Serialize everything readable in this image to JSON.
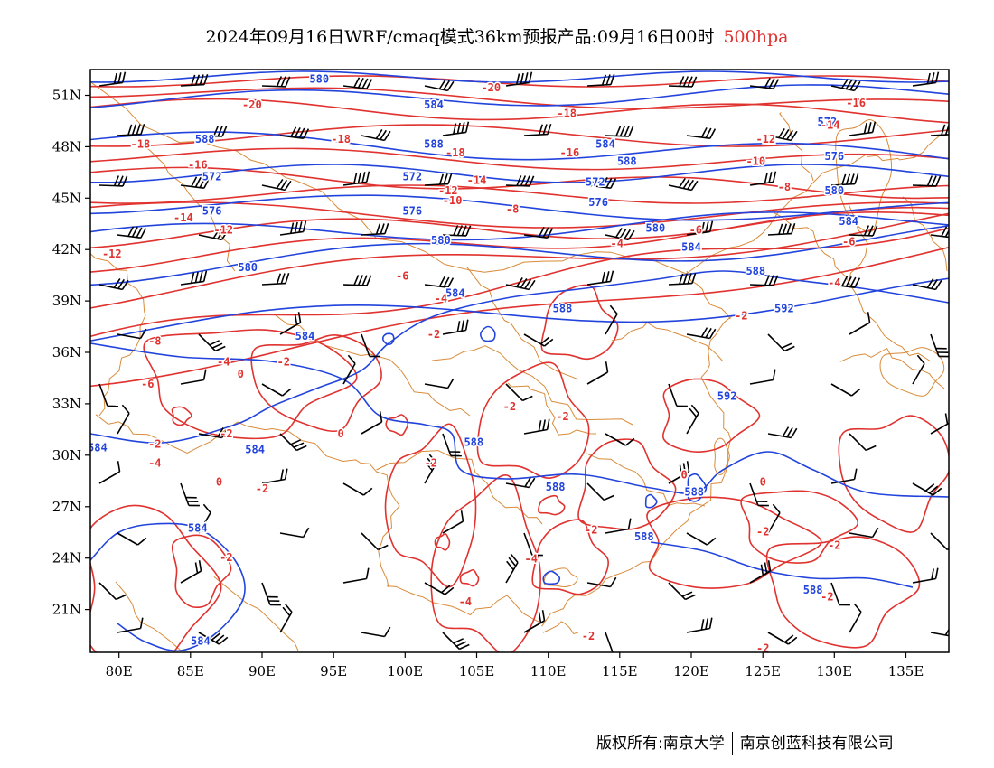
{
  "title": {
    "main": "2024年09月16日WRF/cmaq模式36km预报产品:09月16日00时",
    "level": "500hpa"
  },
  "axes": {
    "lon_labels": [
      "80E",
      "85E",
      "90E",
      "95E",
      "100E",
      "105E",
      "110E",
      "115E",
      "120E",
      "125E",
      "130E",
      "135E"
    ],
    "lat_labels": [
      "21N",
      "24N",
      "27N",
      "30N",
      "33N",
      "36N",
      "39N",
      "42N",
      "45N",
      "48N",
      "51N"
    ],
    "lon_range": [
      78,
      138
    ],
    "lat_range": [
      18.5,
      52.5
    ]
  },
  "colors": {
    "height_contour": "#2244dd",
    "temperature_contour": "#e0322f",
    "boundary": "#d98b3a",
    "wind_barb": "#000000"
  },
  "height_contours": [
    {
      "label": "580",
      "lon": 94,
      "lat": 52
    },
    {
      "label": "584",
      "lon": 102,
      "lat": 50.5
    },
    {
      "label": "588",
      "lon": 86,
      "lat": 48.5
    },
    {
      "label": "588",
      "lon": 102,
      "lat": 48.2
    },
    {
      "label": "584",
      "lon": 114,
      "lat": 48.2
    },
    {
      "label": "588",
      "lon": 115.5,
      "lat": 47.2
    },
    {
      "label": "572",
      "lon": 129.5,
      "lat": 49.5
    },
    {
      "label": "576",
      "lon": 130,
      "lat": 47.5
    },
    {
      "label": "580",
      "lon": 130,
      "lat": 45.5
    },
    {
      "label": "584",
      "lon": 131,
      "lat": 43.7
    },
    {
      "label": "572",
      "lon": 86.5,
      "lat": 46.3
    },
    {
      "label": "572",
      "lon": 100.5,
      "lat": 46.3
    },
    {
      "label": "572",
      "lon": 113.3,
      "lat": 46
    },
    {
      "label": "576",
      "lon": 86.5,
      "lat": 44.3
    },
    {
      "label": "576",
      "lon": 100.5,
      "lat": 44.3
    },
    {
      "label": "576",
      "lon": 113.5,
      "lat": 44.8
    },
    {
      "label": "580",
      "lon": 102.5,
      "lat": 42.6
    },
    {
      "label": "580",
      "lon": 117.5,
      "lat": 43.3
    },
    {
      "label": "584",
      "lon": 120,
      "lat": 42.2
    },
    {
      "label": "580",
      "lon": 89,
      "lat": 41
    },
    {
      "label": "584",
      "lon": 103.5,
      "lat": 39.5
    },
    {
      "label": "588",
      "lon": 124.5,
      "lat": 40.8
    },
    {
      "label": "592",
      "lon": 126.5,
      "lat": 38.6
    },
    {
      "label": "588",
      "lon": 111,
      "lat": 38.6
    },
    {
      "label": "584",
      "lon": 93,
      "lat": 37
    },
    {
      "label": "592",
      "lon": 122.5,
      "lat": 33.5
    },
    {
      "label": "584",
      "lon": 89.5,
      "lat": 30.4
    },
    {
      "label": "584",
      "lon": 78.5,
      "lat": 30.5
    },
    {
      "label": "588",
      "lon": 104.8,
      "lat": 30.8
    },
    {
      "label": "588",
      "lon": 110.5,
      "lat": 28.2
    },
    {
      "label": "588",
      "lon": 120.2,
      "lat": 27.9
    },
    {
      "label": "588",
      "lon": 116.7,
      "lat": 25.3
    },
    {
      "label": "584",
      "lon": 85.5,
      "lat": 25.8
    },
    {
      "label": "588",
      "lon": 128.5,
      "lat": 22.2
    },
    {
      "label": "584",
      "lon": 85.7,
      "lat": 19.2
    }
  ],
  "temperature_contours": [
    {
      "label": "-20",
      "lon": 89.3,
      "lat": 50.5
    },
    {
      "label": "-20",
      "lon": 106,
      "lat": 51.5
    },
    {
      "label": "-18",
      "lon": 111.3,
      "lat": 50
    },
    {
      "label": "-16",
      "lon": 131.5,
      "lat": 50.6
    },
    {
      "label": "-14",
      "lon": 129.7,
      "lat": 49.3
    },
    {
      "label": "-18",
      "lon": 81.5,
      "lat": 48.2
    },
    {
      "label": "-18",
      "lon": 95.5,
      "lat": 48.5
    },
    {
      "label": "-18",
      "lon": 103.5,
      "lat": 47.7
    },
    {
      "label": "-16",
      "lon": 85.5,
      "lat": 47
    },
    {
      "label": "-16",
      "lon": 111.5,
      "lat": 47.7
    },
    {
      "label": "-12",
      "lon": 125.2,
      "lat": 48.5
    },
    {
      "label": "-10",
      "lon": 124.5,
      "lat": 47.2
    },
    {
      "label": "-14",
      "lon": 105,
      "lat": 46.1
    },
    {
      "label": "-12",
      "lon": 103,
      "lat": 45.5
    },
    {
      "label": "-10",
      "lon": 103.3,
      "lat": 44.9
    },
    {
      "label": "-8",
      "lon": 107.5,
      "lat": 44.4
    },
    {
      "label": "-8",
      "lon": 126.5,
      "lat": 45.7
    },
    {
      "label": "-14",
      "lon": 84.5,
      "lat": 43.9
    },
    {
      "label": "-12",
      "lon": 87.3,
      "lat": 43.2
    },
    {
      "label": "-6",
      "lon": 120.3,
      "lat": 43.2
    },
    {
      "label": "-6",
      "lon": 131,
      "lat": 42.5
    },
    {
      "label": "-4",
      "lon": 114.8,
      "lat": 42.4
    },
    {
      "label": "-12",
      "lon": 79.5,
      "lat": 41.8
    },
    {
      "label": "-6",
      "lon": 99.8,
      "lat": 40.5
    },
    {
      "label": "-4",
      "lon": 102.5,
      "lat": 39.2
    },
    {
      "label": "-4",
      "lon": 130,
      "lat": 40.1
    },
    {
      "label": "-2",
      "lon": 123.5,
      "lat": 38.2
    },
    {
      "label": "-2",
      "lon": 102,
      "lat": 37.1
    },
    {
      "label": "-8",
      "lon": 82.5,
      "lat": 36.7
    },
    {
      "label": "-4",
      "lon": 87.3,
      "lat": 35.5
    },
    {
      "label": "-2",
      "lon": 91.5,
      "lat": 35.5
    },
    {
      "label": "0",
      "lon": 88.5,
      "lat": 34.8
    },
    {
      "label": "-6",
      "lon": 82,
      "lat": 34.2
    },
    {
      "label": "-2",
      "lon": 107.3,
      "lat": 32.9
    },
    {
      "label": "-2",
      "lon": 111,
      "lat": 32.3
    },
    {
      "label": "-2",
      "lon": 87.5,
      "lat": 31.3
    },
    {
      "label": "0",
      "lon": 95.5,
      "lat": 31.3
    },
    {
      "label": "-2",
      "lon": 82.5,
      "lat": 30.7
    },
    {
      "label": "-4",
      "lon": 82.5,
      "lat": 29.6
    },
    {
      "label": "-2",
      "lon": 101.8,
      "lat": 29.6
    },
    {
      "label": "0",
      "lon": 87,
      "lat": 28.5
    },
    {
      "label": "-2",
      "lon": 90,
      "lat": 28.1
    },
    {
      "label": "0",
      "lon": 119.5,
      "lat": 28.9
    },
    {
      "label": "0",
      "lon": 125,
      "lat": 28.5
    },
    {
      "label": "-2",
      "lon": 113,
      "lat": 25.7
    },
    {
      "label": "-2",
      "lon": 125,
      "lat": 25.6
    },
    {
      "label": "-2",
      "lon": 87.5,
      "lat": 24.1
    },
    {
      "label": "-2",
      "lon": 130,
      "lat": 24.8
    },
    {
      "label": "-4",
      "lon": 108.8,
      "lat": 24
    },
    {
      "label": "-2",
      "lon": 129.5,
      "lat": 21.8
    },
    {
      "label": "-4",
      "lon": 104.2,
      "lat": 21.5
    },
    {
      "label": "-2",
      "lon": 112.8,
      "lat": 19.5
    },
    {
      "label": "-2",
      "lon": 125,
      "lat": 18.8
    }
  ],
  "copyright": {
    "owner": "版权所有:南京大学",
    "partner": "南京创蓝科技有限公司"
  }
}
